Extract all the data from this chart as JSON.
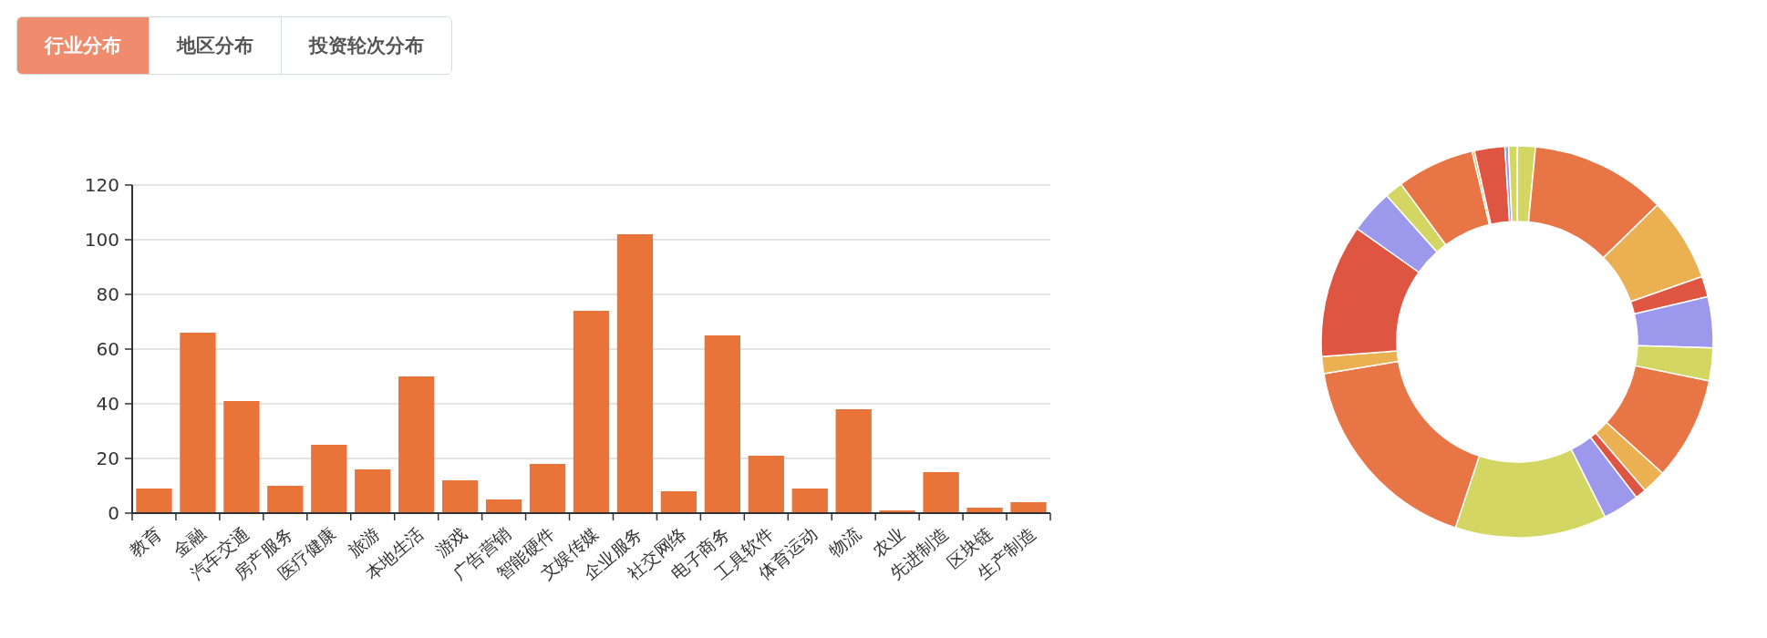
{
  "chart_data": [
    {
      "type": "other",
      "annotations": [
        "行业分布",
        "地区分布",
        "投资轮次分布"
      ]
    },
    {
      "type": "bar",
      "categories": [
        "教育",
        "金融",
        "汽车交通",
        "房产服务",
        "医疗健康",
        "旅游",
        "本地生活",
        "游戏",
        "广告营销",
        "智能硬件",
        "文娱传媒",
        "企业服务",
        "社交网络",
        "电子商务",
        "工具软件",
        "体育运动",
        "物流",
        "农业",
        "先进制造",
        "区块链",
        "生产制造"
      ],
      "values": [
        9,
        66,
        41,
        10,
        25,
        16,
        50,
        12,
        5,
        18,
        74,
        102,
        8,
        65,
        21,
        9,
        38,
        1,
        15,
        2,
        4
      ],
      "color": "#e9743a",
      "ylim": [
        0,
        120
      ],
      "yticks": [
        0,
        20,
        40,
        60,
        80,
        100,
        120
      ],
      "grid": "y"
    },
    {
      "type": "donut",
      "categories": [
        null,
        null,
        null,
        null,
        null,
        null,
        null,
        null,
        null,
        null,
        null,
        null,
        null,
        null,
        null,
        null,
        null,
        null,
        null,
        null,
        null
      ],
      "values": [
        1.5,
        11.2,
        6.9,
        1.7,
        4.2,
        2.7,
        8.5,
        2.0,
        0.9,
        3.0,
        12.5,
        17.3,
        1.4,
        11.0,
        3.6,
        1.5,
        6.4,
        0.2,
        2.5,
        0.3,
        0.7
      ],
      "colors": [
        "#d4d663",
        "#e87545",
        "#ebb052",
        "#de5641",
        "#9c98ec",
        "#d4d663",
        "#e87545",
        "#ebb052",
        "#de5641",
        "#9c98ec",
        "#d4d663",
        "#e87545",
        "#ebb052",
        "#de5641",
        "#9c98ec",
        "#d4d663",
        "#e87545",
        "#ebb052",
        "#de5641",
        "#9c98ec",
        "#d4d663"
      ]
    }
  ]
}
